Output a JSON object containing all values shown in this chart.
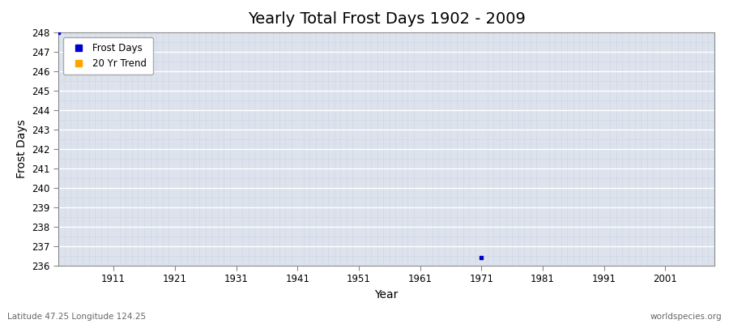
{
  "title": "Yearly Total Frost Days 1902 - 2009",
  "xlabel": "Year",
  "ylabel": "Frost Days",
  "xlim": [
    1902,
    2009
  ],
  "ylim": [
    236,
    248
  ],
  "yticks": [
    236,
    237,
    238,
    239,
    240,
    241,
    242,
    243,
    244,
    245,
    246,
    247,
    248
  ],
  "xticks": [
    1911,
    1921,
    1931,
    1941,
    1951,
    1961,
    1971,
    1981,
    1991,
    2001
  ],
  "data_points": [
    [
      1902,
      248.0
    ],
    [
      1971,
      236.4
    ]
  ],
  "frost_days_color": "#0000cc",
  "trend_color": "#ffa500",
  "plot_bg_color": "#dce3ed",
  "fig_bg_color": "#ffffff",
  "grid_major_color": "#ffffff",
  "grid_minor_color": "#c8cfe0",
  "legend_labels": [
    "Frost Days",
    "20 Yr Trend"
  ],
  "footer_left": "Latitude 47.25 Longitude 124.25",
  "footer_right": "worldspecies.org",
  "title_fontsize": 14,
  "axis_label_fontsize": 10,
  "tick_fontsize": 8.5,
  "footer_fontsize": 7.5,
  "spine_color": "#888888"
}
